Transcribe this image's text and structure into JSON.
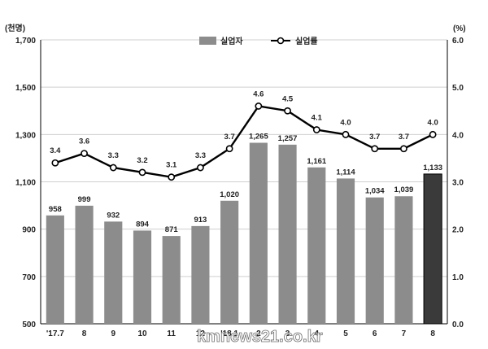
{
  "chart_data": {
    "type": "bar",
    "categories": [
      "'17.7",
      "8",
      "9",
      "10",
      "11",
      "12",
      "'18.1",
      "2",
      "3",
      "4",
      "5",
      "6",
      "7",
      "8"
    ],
    "series": [
      {
        "name": "실업자",
        "type": "bar",
        "axis": "left",
        "values": [
          958,
          999,
          932,
          894,
          871,
          913,
          1020,
          1265,
          1257,
          1161,
          1114,
          1034,
          1039,
          1133
        ],
        "labels": [
          "958",
          "999",
          "932",
          "894",
          "871",
          "913",
          "1,020",
          "1,265",
          "1,257",
          "1,161",
          "1,114",
          "1,034",
          "1,039",
          "1,133"
        ],
        "color": "#8c8c8c",
        "highlight_color": "#3a3a3a",
        "highlight_index": 13
      },
      {
        "name": "실업률",
        "type": "line",
        "axis": "right",
        "values": [
          3.4,
          3.6,
          3.3,
          3.2,
          3.1,
          3.3,
          3.7,
          4.6,
          4.5,
          4.1,
          4.0,
          3.7,
          3.7,
          4.0
        ],
        "labels": [
          "3.4",
          "3.6",
          "3.3",
          "3.2",
          "3.1",
          "3.3",
          "3.7",
          "4.6",
          "4.5",
          "4.1",
          "4.0",
          "3.7",
          "3.7",
          "4.0"
        ],
        "color": "#000000"
      }
    ],
    "left_axis": {
      "unit": "(천명)",
      "ylim": [
        500,
        1700
      ],
      "ticks": [
        500,
        700,
        900,
        1100,
        1300,
        1500,
        1700
      ],
      "tick_labels": [
        "500",
        "700",
        "900",
        "1,100",
        "1,300",
        "1,500",
        "1,700"
      ]
    },
    "right_axis": {
      "unit": "(%)",
      "ylim": [
        0,
        6
      ],
      "ticks": [
        0,
        1,
        2,
        3,
        4,
        5,
        6
      ],
      "tick_labels": [
        "0.0",
        "1.0",
        "2.0",
        "3.0",
        "4.0",
        "5.0",
        "6.0"
      ]
    },
    "grid": true,
    "legend_position": "top-center"
  },
  "watermark": "kmnews21.co.kr"
}
